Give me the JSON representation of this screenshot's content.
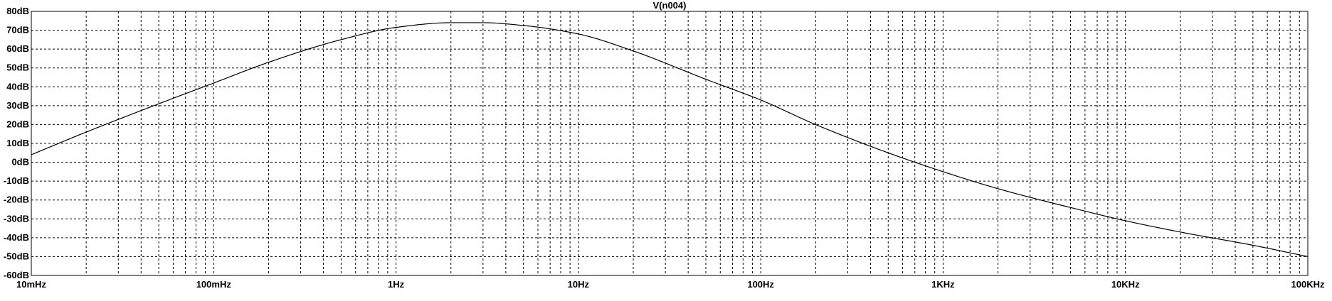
{
  "chart_data": {
    "type": "line",
    "title": "V(n004)",
    "xlabel": "",
    "ylabel": "",
    "x_scale": "log",
    "x_range_hz": [
      0.01,
      100000
    ],
    "xlim": [
      "10mHz",
      "100KHz"
    ],
    "ylim": [
      -60,
      80
    ],
    "y_unit": "dB",
    "grid": true,
    "legend": "none",
    "x_tick_labels": [
      "10mHz",
      "100mHz",
      "1Hz",
      "10Hz",
      "100Hz",
      "1KHz",
      "10KHz",
      "100KHz"
    ],
    "y_tick_labels": [
      "80dB",
      "70dB",
      "60dB",
      "50dB",
      "40dB",
      "30dB",
      "20dB",
      "10dB",
      "0dB",
      "-10dB",
      "-20dB",
      "-30dB",
      "-40dB",
      "-50dB",
      "-60dB"
    ],
    "series": [
      {
        "x": [
          0.01,
          0.02,
          0.05,
          0.1,
          0.2,
          0.5,
          1,
          2,
          3,
          5,
          10,
          20,
          50,
          100,
          200,
          500,
          1000,
          2000,
          5000,
          10000,
          20000,
          50000,
          100000
        ],
        "y": [
          4,
          16,
          31,
          42,
          53,
          65,
          71.5,
          74,
          74,
          72.5,
          68,
          59,
          44,
          33,
          20,
          5,
          -5,
          -14,
          -24,
          -31,
          -37,
          -44,
          -50
        ]
      }
    ],
    "line_color": "#000000",
    "grid_color": "#000000",
    "background": "#ffffff"
  }
}
